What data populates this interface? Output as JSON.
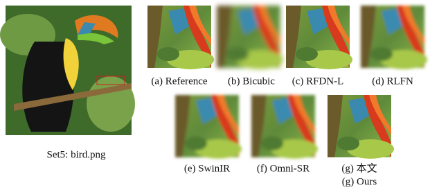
{
  "main_image": {
    "caption": "Set5: bird.png"
  },
  "panels": [
    {
      "label": "(a) Reference"
    },
    {
      "label": "(b) Bicubic"
    },
    {
      "label": "(c) RFDN-L"
    },
    {
      "label": "(d) RLFN"
    },
    {
      "label": "(e) SwinIR"
    },
    {
      "label": "(f) Omni-SR"
    },
    {
      "labels": [
        "(g) 本文",
        "(g) Ours"
      ]
    }
  ]
}
